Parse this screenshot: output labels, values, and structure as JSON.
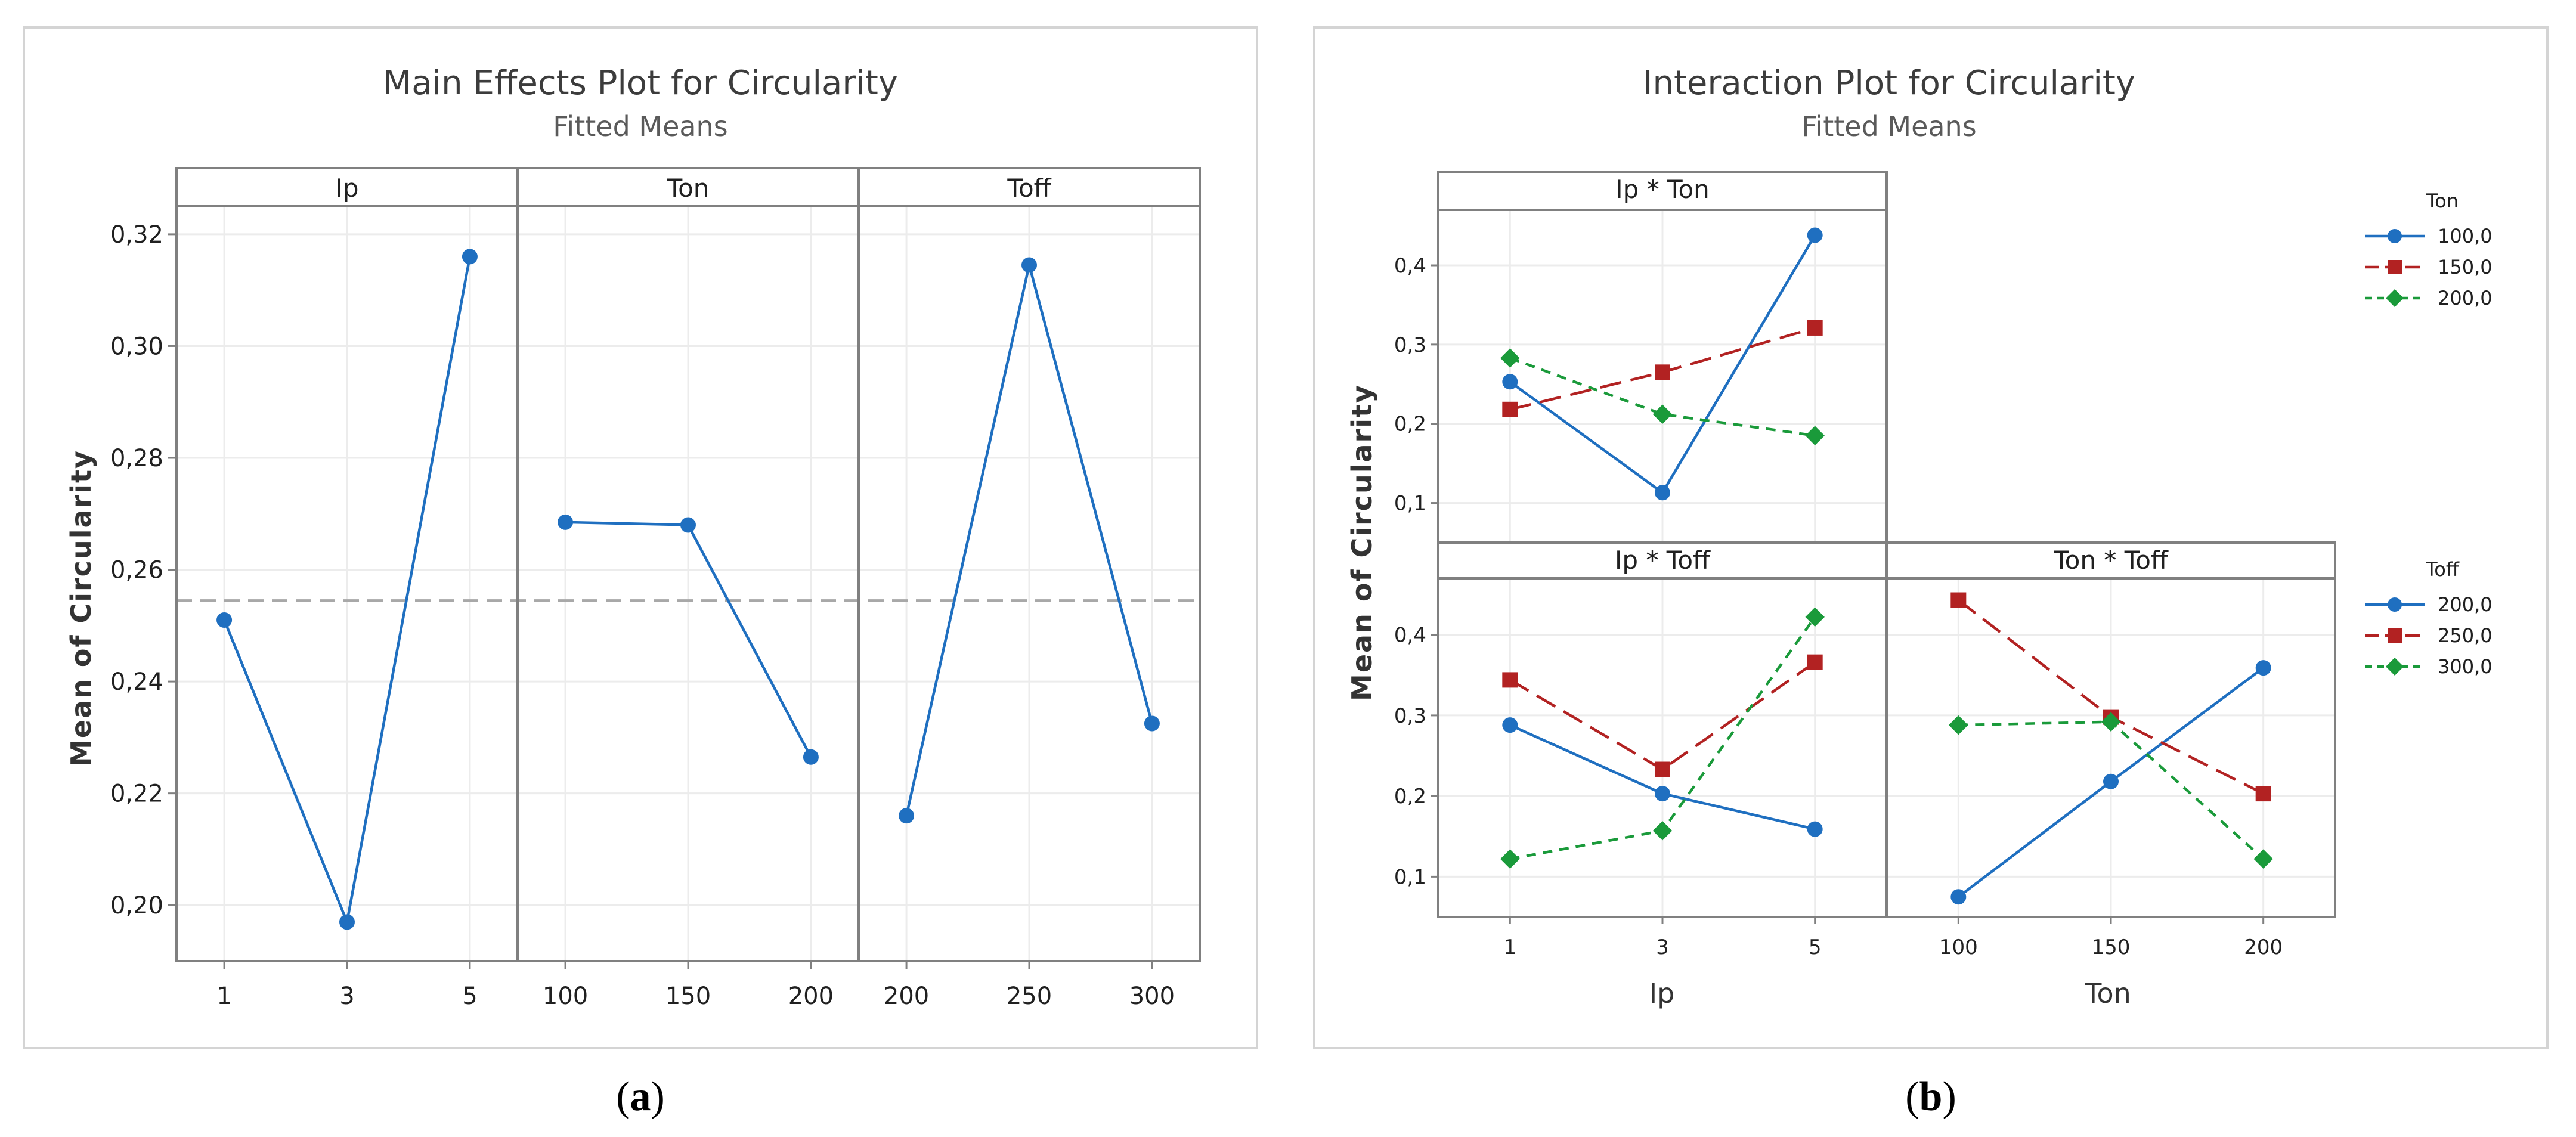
{
  "colors": {
    "blue": "#1f6fc0",
    "red": "#b22222",
    "green": "#1a9a3a",
    "frame": "#808080",
    "grid": "#ececec",
    "strip": "#ffffff",
    "refline": "#a8a8a8"
  },
  "chart_data": [
    {
      "type": "line",
      "title": "Main Effects Plot for Circularity",
      "subtitle": "Fitted Means",
      "ylabel": "Mean of Circularity",
      "ylim": [
        0.19,
        0.325
      ],
      "yticks": [
        0.2,
        0.22,
        0.24,
        0.26,
        0.28,
        0.3,
        0.32
      ],
      "ytick_labels": [
        "0,20",
        "0,22",
        "0,24",
        "0,26",
        "0,28",
        "0,30",
        "0,32"
      ],
      "reference_mean": 0.2545,
      "panels": [
        {
          "name": "Ip",
          "categories": [
            "1",
            "3",
            "5"
          ],
          "values": [
            0.251,
            0.197,
            0.316
          ]
        },
        {
          "name": "Ton",
          "categories": [
            "100",
            "150",
            "200"
          ],
          "values": [
            0.2685,
            0.268,
            0.2265
          ]
        },
        {
          "name": "Toff",
          "categories": [
            "200",
            "250",
            "300"
          ],
          "values": [
            0.216,
            0.3145,
            0.2325
          ]
        }
      ]
    },
    {
      "type": "line",
      "title": "Interaction Plot for Circularity",
      "subtitle": "Fitted Means",
      "ylabel": "Mean of Circularity",
      "ylim": [
        0.05,
        0.47
      ],
      "yticks": [
        0.1,
        0.2,
        0.3,
        0.4
      ],
      "ytick_labels": [
        "0,1",
        "0,2",
        "0,3",
        "0,4"
      ],
      "xlabels": [
        "Ip",
        "Ton"
      ],
      "legends": [
        {
          "title": "Ton",
          "entries": [
            "100,0",
            "150,0",
            "200,0"
          ]
        },
        {
          "title": "Toff",
          "entries": [
            "200,0",
            "250,0",
            "300,0"
          ]
        }
      ],
      "panels": [
        {
          "name": "Ip * Ton",
          "categories": [
            "1",
            "3",
            "5"
          ],
          "series": [
            {
              "name": "100,0",
              "values": [
                0.253,
                0.113,
                0.438
              ]
            },
            {
              "name": "150,0",
              "values": [
                0.218,
                0.265,
                0.321
              ]
            },
            {
              "name": "200,0",
              "values": [
                0.283,
                0.212,
                0.185
              ]
            }
          ]
        },
        {
          "name": "Ip * Toff",
          "categories": [
            "1",
            "3",
            "5"
          ],
          "series": [
            {
              "name": "200,0",
              "values": [
                0.288,
                0.203,
                0.159
              ]
            },
            {
              "name": "250,0",
              "values": [
                0.344,
                0.233,
                0.366
              ]
            },
            {
              "name": "300,0",
              "values": [
                0.122,
                0.157,
                0.422
              ]
            }
          ]
        },
        {
          "name": "Ton * Toff",
          "categories": [
            "100",
            "150",
            "200"
          ],
          "series": [
            {
              "name": "200,0",
              "values": [
                0.075,
                0.218,
                0.359
              ]
            },
            {
              "name": "250,0",
              "values": [
                0.443,
                0.298,
                0.203
              ]
            },
            {
              "name": "300,0",
              "values": [
                0.288,
                0.292,
                0.122
              ]
            }
          ]
        }
      ]
    }
  ],
  "captions": {
    "a_open": "(",
    "a_letter": "a",
    "a_close": ")",
    "b_open": "(",
    "b_letter": "b",
    "b_close": ")"
  }
}
